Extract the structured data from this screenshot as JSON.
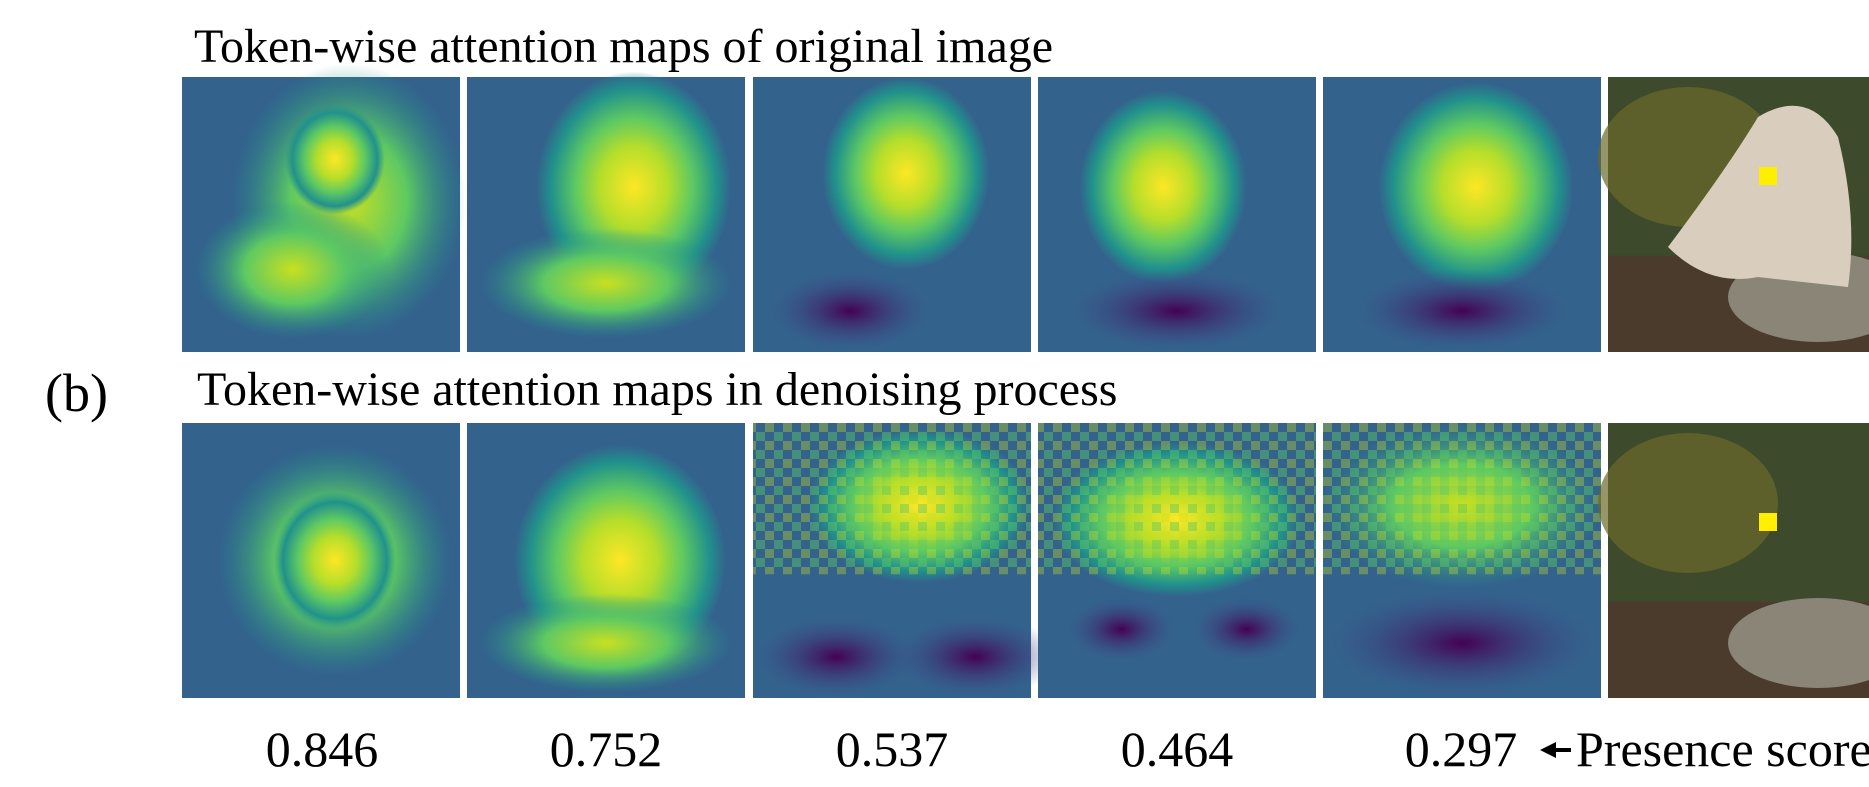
{
  "panel_label": "(b)",
  "row1": {
    "title": "Token-wise attention maps of original image"
  },
  "row2": {
    "title": "Token-wise attention maps in denoising process"
  },
  "scores": [
    0.846,
    0.752,
    0.537,
    0.464,
    0.297
  ],
  "score_label": "Presence score"
}
